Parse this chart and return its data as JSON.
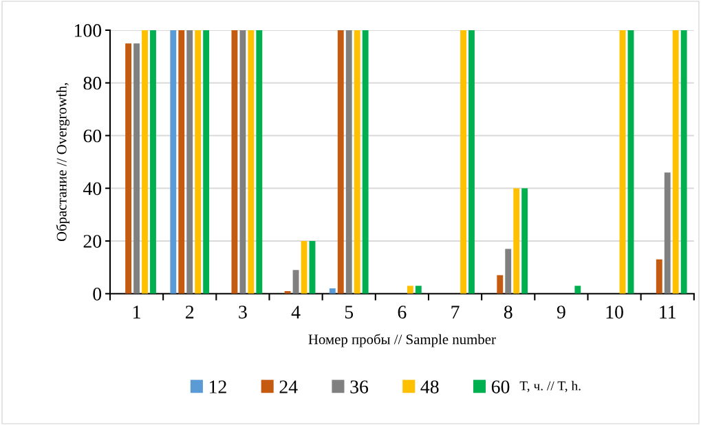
{
  "chart_data": {
    "type": "bar",
    "xlabel": "Номер пробы // Sample number",
    "ylabel": "Обрастание // Overgrowth,",
    "categories": [
      "1",
      "2",
      "3",
      "4",
      "5",
      "6",
      "7",
      "8",
      "9",
      "10",
      "11"
    ],
    "series": [
      {
        "name": "12",
        "color": "#5b9bd5",
        "values": [
          0,
          100,
          0,
          0,
          2,
          0,
          0,
          0,
          0,
          0,
          0
        ]
      },
      {
        "name": "24",
        "color": "#c55a11",
        "values": [
          95,
          100,
          100,
          1,
          100,
          0,
          0,
          7,
          0,
          0,
          13
        ]
      },
      {
        "name": "36",
        "color": "#808080",
        "values": [
          95,
          100,
          100,
          9,
          100,
          0,
          0,
          17,
          0,
          0,
          46
        ]
      },
      {
        "name": "48",
        "color": "#ffc000",
        "values": [
          100,
          100,
          100,
          20,
          100,
          3,
          100,
          40,
          0,
          100,
          100
        ]
      },
      {
        "name": "60",
        "color": "#00b050",
        "values": [
          100,
          100,
          100,
          20,
          100,
          3,
          100,
          40,
          3,
          100,
          100
        ]
      }
    ],
    "legend_title": "T, ч. // T, h.",
    "legend": "bottom",
    "ylim": [
      0,
      100
    ],
    "yticks": [
      0,
      20,
      40,
      60,
      80,
      100
    ],
    "grid": "y"
  }
}
